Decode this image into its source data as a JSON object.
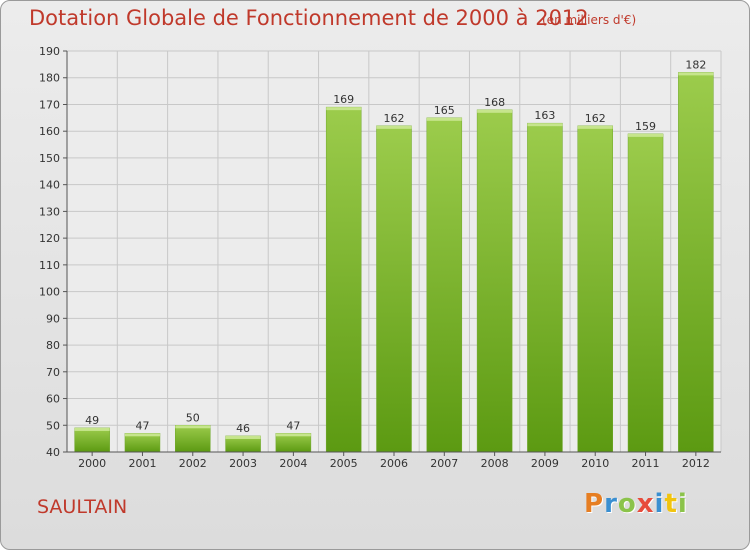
{
  "header": {
    "title": "Dotation Globale de Fonctionnement de 2000 à 2012",
    "unit": "(en milliers d'€)"
  },
  "footer": {
    "commune": "SAULTAIN",
    "logo_text": "Proxiti"
  },
  "colors": {
    "title": "#c0392b",
    "bar_light": "#9ccc4c",
    "bar_dark": "#5c9a12",
    "grid": "#c8c8c8"
  },
  "chart_data": {
    "type": "bar",
    "title": "Dotation Globale de Fonctionnement de 2000 à 2012",
    "subtitle": "(en milliers d'€)",
    "xlabel": "",
    "ylabel": "",
    "categories": [
      "2000",
      "2001",
      "2002",
      "2003",
      "2004",
      "2005",
      "2006",
      "2007",
      "2008",
      "2009",
      "2010",
      "2011",
      "2012"
    ],
    "values": [
      49,
      47,
      50,
      46,
      47,
      169,
      162,
      165,
      168,
      163,
      162,
      159,
      182
    ],
    "ylim": [
      40,
      190
    ],
    "yticks": [
      40,
      50,
      60,
      70,
      80,
      90,
      100,
      110,
      120,
      130,
      140,
      150,
      160,
      170,
      180,
      190
    ],
    "grid": true,
    "legend": "none"
  }
}
